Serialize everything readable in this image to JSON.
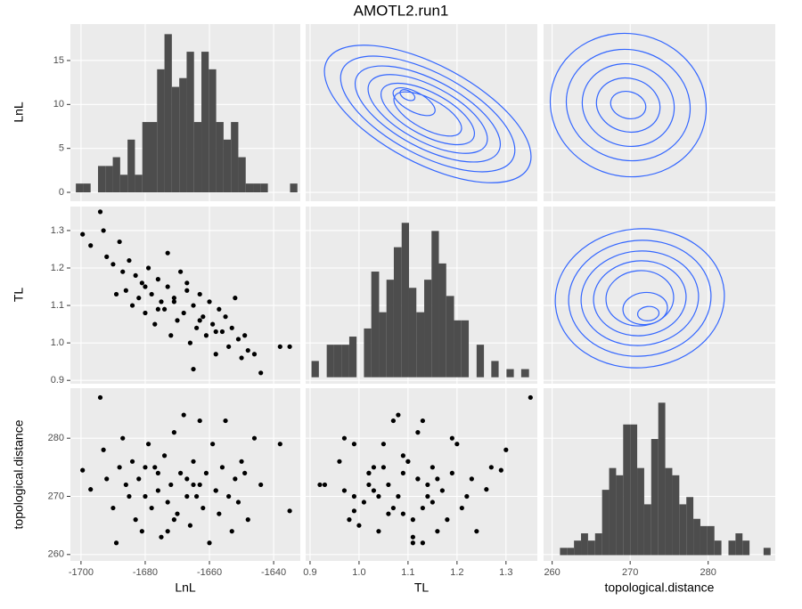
{
  "chart_data": {
    "type": "scatter-matrix",
    "title": "AMOTL2.run1",
    "variables": [
      "LnL",
      "TL",
      "topological.distance"
    ],
    "axes": [
      {
        "lim": [
          -1703.3,
          -1631.7
        ],
        "ticks": [
          -1700,
          -1680,
          -1660,
          -1640
        ]
      },
      {
        "lim": [
          0.891,
          1.364
        ],
        "ticks": [
          0.9,
          {
            "value": 1,
            "label": "1.0"
          },
          1.1,
          1.2,
          1.3
        ]
      },
      {
        "lim": [
          258.9,
          288.6
        ],
        "ticks": [
          260,
          270,
          280
        ]
      }
    ],
    "count_ylim": [
      -1.01,
      19.15
    ],
    "count_ticks": [
      0,
      5,
      10,
      15
    ],
    "point_color": "#000000",
    "bar_color": "#4d4d4d",
    "contour_color": "#3366ff",
    "grid": true,
    "histograms": [
      {
        "bins": [
          -1701.6,
          -1699.3,
          -1697.0,
          -1694.7,
          -1692.4,
          -1690.1,
          -1687.8,
          -1685.5,
          -1683.2,
          -1680.9,
          -1678.6,
          -1676.3,
          -1674.0,
          -1671.7,
          -1669.4,
          -1667.1,
          -1664.8,
          -1662.5,
          -1660.2,
          -1657.9,
          -1655.6,
          -1653.3,
          -1651.0,
          -1648.7,
          -1646.4,
          -1644.1,
          -1641.8,
          -1639.5,
          -1637.2,
          -1634.9,
          -1632.6
        ],
        "counts": [
          1,
          1,
          0,
          3,
          3,
          4,
          2,
          6,
          2,
          8,
          8,
          14,
          18,
          12,
          13,
          16,
          8,
          16,
          14,
          8,
          6,
          8,
          4,
          1,
          1,
          1,
          0,
          0,
          0,
          1
        ],
        "ylim": [
          -1.01,
          19.15
        ]
      },
      {
        "bins": [
          0.903,
          0.918,
          0.934,
          0.949,
          0.964,
          0.98,
          0.995,
          1.01,
          1.025,
          1.041,
          1.056,
          1.071,
          1.087,
          1.102,
          1.117,
          1.133,
          1.148,
          1.163,
          1.178,
          1.194,
          1.209,
          1.224,
          1.24,
          1.255,
          1.27,
          1.285,
          1.301,
          1.316,
          1.331,
          1.347,
          1.362
        ],
        "counts": [
          2,
          0,
          4,
          4,
          4,
          5,
          0,
          6,
          13,
          8,
          12,
          16,
          19,
          11,
          8,
          12,
          18,
          14,
          10,
          7,
          7,
          0,
          4,
          0,
          2,
          0,
          1,
          0,
          1,
          0
        ],
        "ylim": [
          -0.8,
          21
        ]
      },
      {
        "bins": [
          261.0,
          261.9,
          262.8,
          263.7,
          264.6,
          265.5,
          266.4,
          267.3,
          268.2,
          269.1,
          270.0,
          270.9,
          271.8,
          272.7,
          273.6,
          274.5,
          275.4,
          276.3,
          277.2,
          278.1,
          279.0,
          279.9,
          280.8,
          281.7,
          282.6,
          283.5,
          284.4,
          285.3,
          286.2,
          287.1,
          288.0
        ],
        "counts": [
          1,
          1,
          2,
          3,
          2,
          3,
          9,
          12,
          11,
          18,
          18,
          12,
          7,
          16,
          21,
          12,
          11,
          7,
          8,
          5,
          4,
          4,
          2,
          0,
          2,
          3,
          2,
          0,
          0,
          1
        ],
        "ylim": [
          -0.8,
          23
        ]
      }
    ],
    "data": [
      [
        -1699.5,
        -1697,
        -1694,
        -1693,
        -1692,
        -1690,
        -1689,
        -1688,
        -1687,
        -1686,
        -1685,
        -1684,
        -1683,
        -1682,
        -1681,
        -1680,
        -1679,
        -1678,
        -1677,
        -1676,
        -1675,
        -1674,
        -1673,
        -1672,
        -1671,
        -1670,
        -1669,
        -1668,
        -1667,
        -1666,
        -1665,
        -1664,
        -1663,
        -1662,
        -1661,
        -1660,
        -1659,
        -1658,
        -1657,
        -1656,
        -1655,
        -1654,
        -1653,
        -1652,
        -1651,
        -1650,
        -1649,
        -1648,
        -1646,
        -1644,
        -1638,
        -1635,
        -1667,
        -1663,
        -1676,
        -1671,
        -1658,
        -1680,
        -1665,
        -1673
      ],
      [
        1.29,
        1.26,
        1.35,
        1.3,
        1.23,
        1.21,
        1.13,
        1.27,
        1.19,
        1.14,
        1.22,
        1.1,
        1.18,
        1.12,
        1.16,
        1.08,
        1.2,
        1.13,
        1.05,
        1.17,
        1.11,
        1.09,
        1.15,
        1.02,
        1.12,
        1.06,
        1.19,
        1.08,
        1.14,
        1.0,
        1.1,
        1.04,
        1.13,
        1.07,
        1.02,
        1.11,
        1.05,
        0.97,
        1.09,
        1.03,
        1.07,
        0.99,
        1.04,
        1.12,
        1.01,
        0.96,
        1.02,
        0.98,
        0.97,
        0.92,
        0.99,
        0.99,
        1.16,
        1.06,
        1.09,
        1.11,
        1.03,
        1.15,
        0.93,
        1.24
      ],
      [
        274.5,
        271.2,
        287,
        278,
        273,
        268,
        262,
        275,
        280,
        272,
        270,
        276,
        266,
        273,
        264,
        270,
        279,
        268,
        275,
        271,
        263,
        277,
        269,
        272,
        281,
        267,
        274,
        284,
        270,
        265,
        276,
        270,
        283,
        268,
        274,
        262,
        279,
        271,
        267,
        275,
        283,
        270,
        264,
        273,
        269,
        276,
        274,
        266,
        280,
        272,
        279,
        267.5,
        273,
        272,
        274,
        266,
        271,
        275,
        272,
        264
      ]
    ]
  }
}
